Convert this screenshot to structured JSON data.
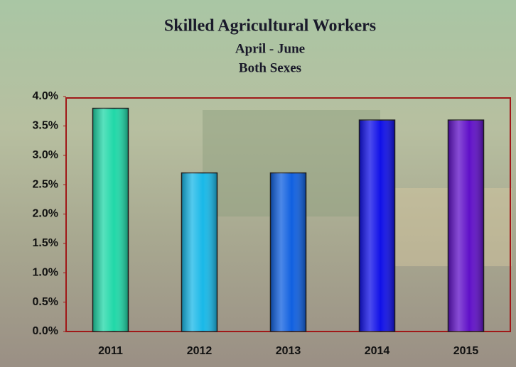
{
  "chart_data": {
    "type": "bar",
    "title": "Skilled Agricultural Workers",
    "subtitles": [
      "April - June",
      "Both Sexes"
    ],
    "categories": [
      "2011",
      "2012",
      "2013",
      "2014",
      "2015"
    ],
    "values": [
      3.8,
      2.7,
      2.7,
      3.6,
      3.6
    ],
    "colors": [
      "#20d8a8",
      "#18b8e8",
      "#1060e0",
      "#1010e8",
      "#6010c8"
    ],
    "ylim": [
      0,
      4
    ],
    "yticks": [
      {
        "value": 0,
        "label": "0.0%"
      },
      {
        "value": 0.5,
        "label": "0.5%"
      },
      {
        "value": 1,
        "label": "1.0%"
      },
      {
        "value": 1.5,
        "label": "1.5%"
      },
      {
        "value": 2,
        "label": "2.0%"
      },
      {
        "value": 2.5,
        "label": "2.5%"
      },
      {
        "value": 3,
        "label": "3.0%"
      },
      {
        "value": 3.5,
        "label": "3.5%"
      },
      {
        "value": 4,
        "label": "4.0%"
      }
    ],
    "grid": false
  }
}
